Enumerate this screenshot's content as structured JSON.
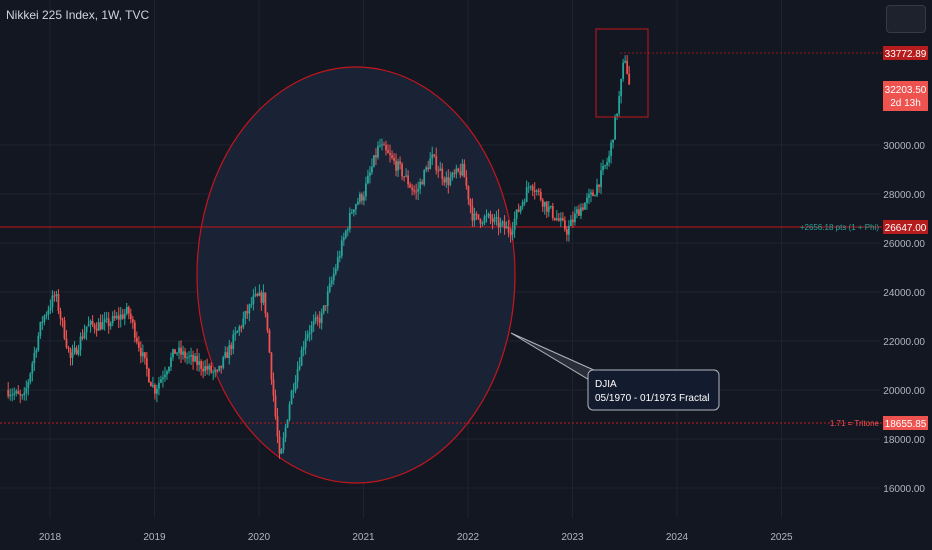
{
  "header": {
    "title": "Nikkei 225 Index, 1W, TVC"
  },
  "colors": {
    "background": "#131722",
    "grid": "#1f2330",
    "up": "#26a69a",
    "down": "#ef5350",
    "accent_red": "#c4161c",
    "ellipse_fill": "#1a2236",
    "callout_bg": "#131b2e",
    "callout_border": "#b2b5be",
    "axis_text": "#b2b5be"
  },
  "axis": {
    "price_labels": [
      "30000.00",
      "28000.00",
      "26000.00",
      "24000.00",
      "22000.00",
      "20000.00",
      "18000.00",
      "16000.00"
    ],
    "time_labels": [
      "2018",
      "2019",
      "2020",
      "2021",
      "2022",
      "2023",
      "2024",
      "2025"
    ]
  },
  "price_badges": {
    "high": "33772.89",
    "last": "32203.50",
    "countdown": "2d 13h",
    "phi_level": "26647.00",
    "tritone_level": "18655.85"
  },
  "annotations": {
    "phi_text": "+2656.18 pts (1 + Phi)",
    "tritone_text": "1.71 = Tritone",
    "callout_line1": "DJIA",
    "callout_line2": "05/1970 - 01/1973 Fractal"
  },
  "chart_data": {
    "type": "candlestick",
    "title": "Nikkei 225 Index, 1W, TVC",
    "interval": "1W",
    "x_range": [
      2017.6,
      2025.3
    ],
    "ylim": [
      15000,
      34500
    ],
    "grid": true,
    "key_points": {
      "x": [
        2017.6,
        2017.75,
        2017.92,
        2018.05,
        2018.2,
        2018.35,
        2018.55,
        2018.75,
        2018.95,
        2019.0,
        2019.2,
        2019.45,
        2019.6,
        2019.75,
        2019.95,
        2020.05,
        2020.2,
        2020.3,
        2020.45,
        2020.6,
        2020.8,
        2020.9,
        2021.0,
        2021.15,
        2021.35,
        2021.5,
        2021.65,
        2021.8,
        2021.95,
        2022.05,
        2022.2,
        2022.4,
        2022.6,
        2022.75,
        2022.95,
        2023.05,
        2023.2,
        2023.35,
        2023.45,
        2023.5,
        2023.55
      ],
      "y": [
        20000,
        19600,
        22800,
        23900,
        21200,
        22600,
        22700,
        23200,
        20500,
        20000,
        21600,
        21000,
        20600,
        22000,
        23700,
        23800,
        17000,
        19700,
        22300,
        23000,
        26000,
        27500,
        28000,
        30000,
        29000,
        28000,
        29500,
        28500,
        29000,
        27000,
        27000,
        26500,
        28500,
        27500,
        26500,
        27300,
        28000,
        29500,
        32000,
        33700,
        32200
      ]
    },
    "levels": [
      {
        "label": "+2656.18 pts (1 + Phi)",
        "value": 26647.0
      },
      {
        "label": "1.71 = Tritone",
        "value": 18655.85
      }
    ],
    "last_price": 32203.5,
    "high": 33772.89
  }
}
